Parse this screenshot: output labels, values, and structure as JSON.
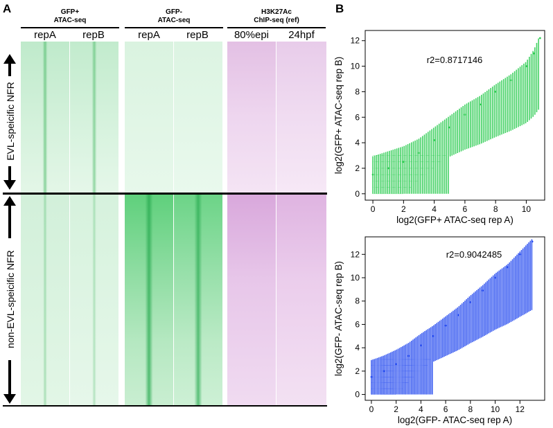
{
  "panels": {
    "a_letter": "A",
    "b_letter": "B"
  },
  "groups": [
    {
      "line1": "GFP+",
      "line2": "ATAC-seq",
      "cols": [
        "repA",
        "repB"
      ]
    },
    {
      "line1": "GFP-",
      "line2": "ATAC-seq",
      "cols": [
        "repA",
        "repB"
      ]
    },
    {
      "line1": "H3K27Ac",
      "line2": "ChIP-seq (ref)",
      "cols": [
        "80%epi",
        "24hpf"
      ]
    }
  ],
  "row_labels": {
    "top": "EVL-speicific NFR",
    "bottom": "non-EVL-speicific NFR"
  },
  "colors": {
    "green": "#3cc85a",
    "purple": "#b040b8",
    "scatter_green": "#2ecc52",
    "scatter_blue": "#2a4ff0"
  },
  "chart_data": [
    {
      "type": "scatter",
      "title": "",
      "xlabel": "log2(GFP+ ATAC-seq rep A)",
      "ylabel": "log2(GFP+ ATAC-seq rep B)",
      "annotation": "r2=0.8717146",
      "xlim": [
        -0.5,
        11.2
      ],
      "ylim": [
        -0.5,
        12.8
      ],
      "xticks": [
        "0",
        "2",
        "4",
        "6",
        "8",
        "10"
      ],
      "yticks": [
        "0",
        "2",
        "4",
        "6",
        "8",
        "10",
        "12"
      ],
      "series": [
        {
          "x": [
            0,
            1,
            2,
            3,
            4,
            5,
            6,
            7,
            8,
            9,
            10,
            10.5,
            10.9
          ],
          "y": [
            1.5,
            2.0,
            2.5,
            3.2,
            4.2,
            5.2,
            6.2,
            7.0,
            8.0,
            8.9,
            10.0,
            11.0,
            12.2
          ]
        }
      ]
    },
    {
      "type": "scatter",
      "title": "",
      "xlabel": "log2(GFP- ATAC-seq rep A)",
      "ylabel": "log2(GFP- ATAC-seq rep B)",
      "annotation": "r2=0.9042485",
      "xlim": [
        -0.5,
        14.0
      ],
      "ylim": [
        -0.5,
        13.5
      ],
      "xticks": [
        "0",
        "2",
        "4",
        "6",
        "8",
        "10",
        "12"
      ],
      "yticks": [
        "0",
        "2",
        "4",
        "6",
        "8",
        "10",
        "12"
      ],
      "series": [
        {
          "x": [
            0,
            1,
            2,
            3,
            4,
            5,
            6,
            7,
            8,
            9,
            10,
            11,
            12,
            13
          ],
          "y": [
            1.5,
            2.0,
            2.6,
            3.3,
            4.2,
            5.0,
            5.9,
            6.8,
            7.9,
            8.9,
            10.0,
            10.9,
            12.0,
            13.1
          ]
        }
      ]
    }
  ]
}
